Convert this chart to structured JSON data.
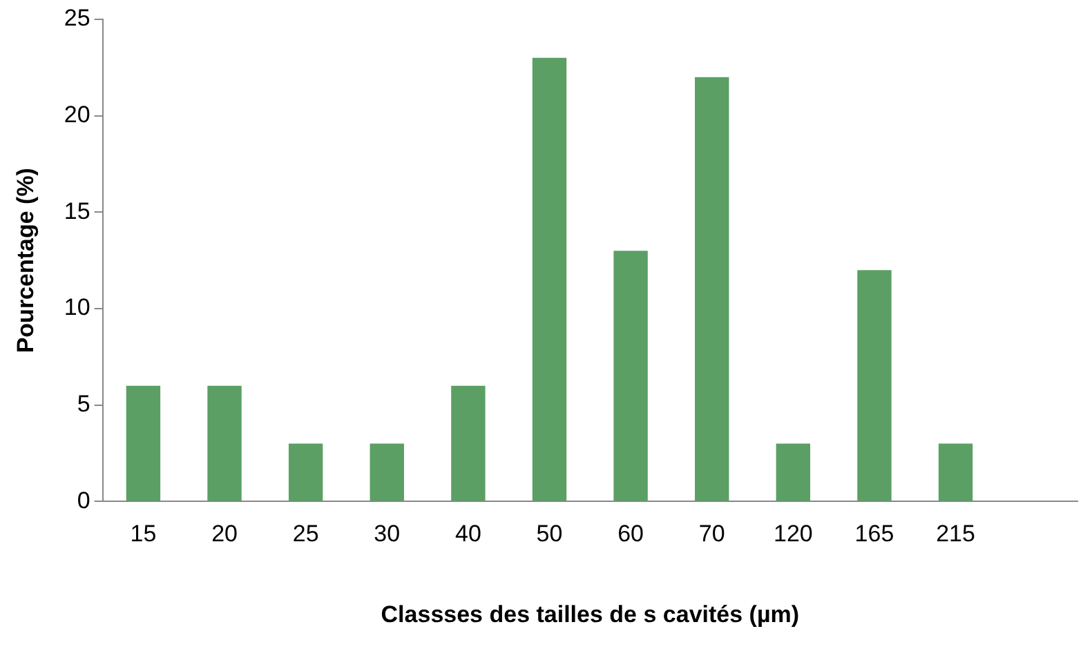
{
  "chart_data": {
    "type": "bar",
    "xlabel": "Classses des tailles de s cavités (µm)",
    "ylabel": "Pourcentage (%)",
    "categories": [
      "15",
      "20",
      "25",
      "30",
      "40",
      "50",
      "60",
      "70",
      "120",
      "165",
      "215",
      null
    ],
    "values": [
      6,
      6,
      3,
      3,
      6,
      23,
      13,
      22,
      3,
      12,
      3,
      null
    ],
    "color": "#5b9f64",
    "ylim": [
      0,
      25
    ],
    "yticks": [
      0,
      5,
      10,
      15,
      20,
      25
    ],
    "grid": false,
    "legend": false
  }
}
